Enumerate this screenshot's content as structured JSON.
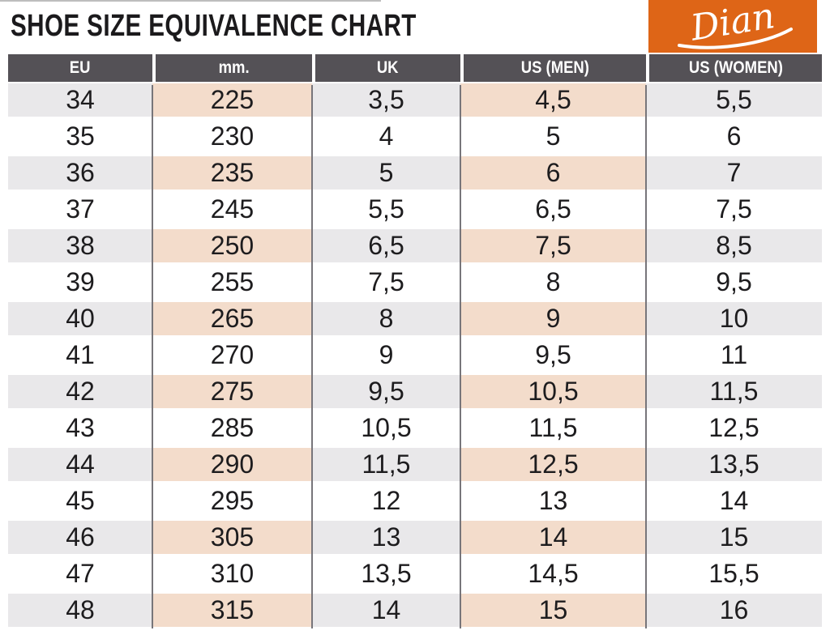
{
  "page": {
    "title": "SHOE SIZE EQUIVALENCE CHART",
    "brand": {
      "name": "Dian"
    }
  },
  "colors": {
    "header_bg": "#545156",
    "header_text": "#FFFFFF",
    "row_gray": "#E9E8EA",
    "row_pink": "#F3DCCB",
    "grid_line": "#77757A",
    "brand_orange": "#DE6517",
    "title_text": "#1B1A1C",
    "cell_text": "#1D1C1E"
  },
  "chart_data": {
    "type": "table",
    "title": "SHOE SIZE EQUIVALENCE CHART",
    "columns": [
      "EU",
      "mm.",
      "UK",
      "US (MEN)",
      "US (WOMEN)"
    ],
    "rows": [
      [
        "34",
        "225",
        "3,5",
        "4,5",
        "5,5"
      ],
      [
        "35",
        "230",
        "4",
        "5",
        "6"
      ],
      [
        "36",
        "235",
        "5",
        "6",
        "7"
      ],
      [
        "37",
        "245",
        "5,5",
        "6,5",
        "7,5"
      ],
      [
        "38",
        "250",
        "6,5",
        "7,5",
        "8,5"
      ],
      [
        "39",
        "255",
        "7,5",
        "8",
        "9,5"
      ],
      [
        "40",
        "265",
        "8",
        "9",
        "10"
      ],
      [
        "41",
        "270",
        "9",
        "9,5",
        "11"
      ],
      [
        "42",
        "275",
        "9,5",
        "10,5",
        "11,5"
      ],
      [
        "43",
        "285",
        "10,5",
        "11,5",
        "12,5"
      ],
      [
        "44",
        "290",
        "11,5",
        "12,5",
        "13,5"
      ],
      [
        "45",
        "295",
        "12",
        "13",
        "14"
      ],
      [
        "46",
        "305",
        "13",
        "14",
        "15"
      ],
      [
        "47",
        "310",
        "13,5",
        "14,5",
        "15,5"
      ],
      [
        "48",
        "315",
        "14",
        "15",
        "16"
      ]
    ],
    "layout": {
      "banding": "alternate rows shaded starting with first row",
      "shaded_band_colors": {
        "eu_uk_women_columns": "#E9E8EA",
        "mm_usmen_columns": "#F3DCCB"
      }
    }
  }
}
